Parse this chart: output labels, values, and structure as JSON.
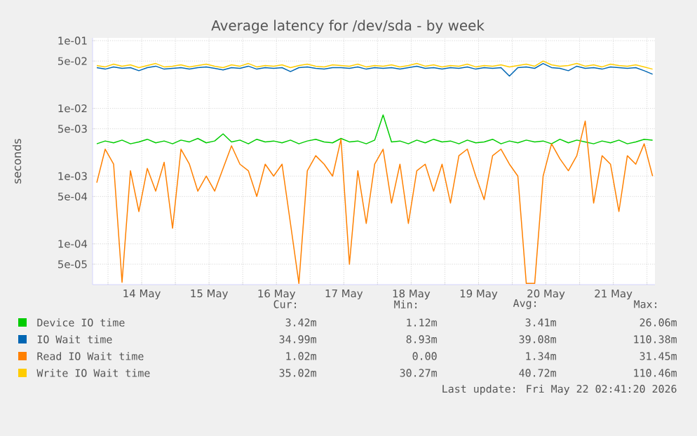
{
  "chart_data": {
    "type": "line",
    "title": "Average latency for /dev/sda - by week",
    "ylabel": "seconds",
    "x": [
      "2026-05-13T20:00",
      "2026-05-13T23:00",
      "2026-05-14T02:00",
      "2026-05-14T05:00",
      "2026-05-14T08:00",
      "2026-05-14T11:00",
      "2026-05-14T14:00",
      "2026-05-14T17:00",
      "2026-05-14T20:00",
      "2026-05-14T23:00",
      "2026-05-15T02:00",
      "2026-05-15T05:00",
      "2026-05-15T08:00",
      "2026-05-15T11:00",
      "2026-05-15T14:00",
      "2026-05-15T17:00",
      "2026-05-15T20:00",
      "2026-05-15T23:00",
      "2026-05-16T02:00",
      "2026-05-16T05:00",
      "2026-05-16T08:00",
      "2026-05-16T11:00",
      "2026-05-16T14:00",
      "2026-05-16T17:00",
      "2026-05-16T20:00",
      "2026-05-16T23:00",
      "2026-05-17T02:00",
      "2026-05-17T05:00",
      "2026-05-17T08:00",
      "2026-05-17T11:00",
      "2026-05-17T14:00",
      "2026-05-17T17:00",
      "2026-05-17T20:00",
      "2026-05-17T23:00",
      "2026-05-18T02:00",
      "2026-05-18T05:00",
      "2026-05-18T08:00",
      "2026-05-18T11:00",
      "2026-05-18T14:00",
      "2026-05-18T17:00",
      "2026-05-18T20:00",
      "2026-05-18T23:00",
      "2026-05-19T02:00",
      "2026-05-19T05:00",
      "2026-05-19T08:00",
      "2026-05-19T11:00",
      "2026-05-19T14:00",
      "2026-05-19T17:00",
      "2026-05-19T20:00",
      "2026-05-19T23:00",
      "2026-05-20T02:00",
      "2026-05-20T05:00",
      "2026-05-20T08:00",
      "2026-05-20T11:00",
      "2026-05-20T14:00",
      "2026-05-20T17:00",
      "2026-05-20T20:00",
      "2026-05-20T23:00",
      "2026-05-21T02:00",
      "2026-05-21T05:00",
      "2026-05-21T08:00",
      "2026-05-21T11:00",
      "2026-05-21T14:00",
      "2026-05-21T17:00",
      "2026-05-21T20:00",
      "2026-05-21T23:00",
      "2026-05-22T02:00"
    ],
    "series": [
      {
        "name": "Device IO time",
        "color": "#00cc00",
        "values": [
          0.003,
          0.0033,
          0.0031,
          0.0034,
          0.003,
          0.0032,
          0.0035,
          0.0031,
          0.0033,
          0.003,
          0.0034,
          0.0032,
          0.0036,
          0.0031,
          0.0033,
          0.0042,
          0.0032,
          0.0034,
          0.003,
          0.0035,
          0.0032,
          0.0033,
          0.0031,
          0.0034,
          0.003,
          0.0033,
          0.0035,
          0.0032,
          0.0031,
          0.0036,
          0.0032,
          0.0033,
          0.003,
          0.0034,
          0.008,
          0.0032,
          0.0033,
          0.003,
          0.0034,
          0.0031,
          0.0035,
          0.0032,
          0.0033,
          0.003,
          0.0034,
          0.0031,
          0.0032,
          0.0035,
          0.003,
          0.0033,
          0.0031,
          0.0034,
          0.0032,
          0.0033,
          0.003,
          0.0035,
          0.0031,
          0.0034,
          0.0032,
          0.003,
          0.0033,
          0.0031,
          0.0034,
          0.003,
          0.0032,
          0.0035,
          0.0034
        ]
      },
      {
        "name": "IO Wait time",
        "color": "#0066b3",
        "values": [
          0.04,
          0.038,
          0.041,
          0.039,
          0.04,
          0.036,
          0.04,
          0.042,
          0.038,
          0.039,
          0.04,
          0.038,
          0.04,
          0.041,
          0.039,
          0.037,
          0.04,
          0.039,
          0.042,
          0.038,
          0.04,
          0.039,
          0.04,
          0.035,
          0.04,
          0.041,
          0.039,
          0.038,
          0.04,
          0.04,
          0.039,
          0.041,
          0.038,
          0.04,
          0.039,
          0.04,
          0.038,
          0.04,
          0.042,
          0.039,
          0.04,
          0.038,
          0.04,
          0.039,
          0.041,
          0.038,
          0.04,
          0.039,
          0.04,
          0.03,
          0.04,
          0.041,
          0.039,
          0.046,
          0.04,
          0.039,
          0.036,
          0.042,
          0.039,
          0.04,
          0.038,
          0.041,
          0.04,
          0.039,
          0.04,
          0.036,
          0.032
        ]
      },
      {
        "name": "Read IO Wait time",
        "color": "#ff8000",
        "values": [
          0.0008,
          0.0025,
          0.0015,
          2.7e-05,
          0.0012,
          0.0003,
          0.0013,
          0.0006,
          0.0016,
          0.00017,
          0.0025,
          0.0015,
          0.0006,
          0.001,
          0.0006,
          0.0013,
          0.0028,
          0.0015,
          0.0012,
          0.0005,
          0.0015,
          0.001,
          0.0015,
          0.0002,
          2.6e-05,
          0.0012,
          0.002,
          0.0015,
          0.001,
          0.0035,
          5e-05,
          0.0012,
          0.0002,
          0.0015,
          0.0025,
          0.0004,
          0.0015,
          0.0002,
          0.0012,
          0.0015,
          0.0006,
          0.0015,
          0.0004,
          0.002,
          0.0025,
          0.001,
          0.00045,
          0.002,
          0.0025,
          0.0015,
          0.001,
          2.6e-05,
          2.6e-05,
          0.001,
          0.003,
          0.0018,
          0.0012,
          0.002,
          0.0065,
          0.0004,
          0.002,
          0.0015,
          0.0003,
          0.002,
          0.0015,
          0.003,
          0.001
        ]
      },
      {
        "name": "Write IO Wait time",
        "color": "#ffcc00",
        "values": [
          0.043,
          0.041,
          0.045,
          0.042,
          0.044,
          0.04,
          0.043,
          0.046,
          0.041,
          0.042,
          0.044,
          0.041,
          0.043,
          0.045,
          0.042,
          0.04,
          0.044,
          0.042,
          0.046,
          0.041,
          0.043,
          0.042,
          0.044,
          0.04,
          0.043,
          0.045,
          0.042,
          0.041,
          0.044,
          0.043,
          0.042,
          0.045,
          0.041,
          0.043,
          0.042,
          0.044,
          0.041,
          0.043,
          0.046,
          0.042,
          0.044,
          0.041,
          0.043,
          0.042,
          0.045,
          0.041,
          0.043,
          0.042,
          0.044,
          0.041,
          0.043,
          0.045,
          0.042,
          0.05,
          0.044,
          0.042,
          0.043,
          0.046,
          0.042,
          0.044,
          0.041,
          0.045,
          0.043,
          0.042,
          0.044,
          0.041,
          0.038
        ]
      }
    ],
    "xlim": [
      "2026-05-13T18:30",
      "2026-05-22T02:50"
    ],
    "xticks": [
      {
        "value": "2026-05-14T00:00",
        "label": null
      },
      {
        "value": "2026-05-14T12:00",
        "label": "14 May"
      },
      {
        "value": "2026-05-15T00:00",
        "label": null
      },
      {
        "value": "2026-05-15T12:00",
        "label": "15 May"
      },
      {
        "value": "2026-05-16T00:00",
        "label": null
      },
      {
        "value": "2026-05-16T12:00",
        "label": "16 May"
      },
      {
        "value": "2026-05-17T00:00",
        "label": null
      },
      {
        "value": "2026-05-17T12:00",
        "label": "17 May"
      },
      {
        "value": "2026-05-18T00:00",
        "label": null
      },
      {
        "value": "2026-05-18T12:00",
        "label": "18 May"
      },
      {
        "value": "2026-05-19T00:00",
        "label": null
      },
      {
        "value": "2026-05-19T12:00",
        "label": "19 May"
      },
      {
        "value": "2026-05-20T00:00",
        "label": null
      },
      {
        "value": "2026-05-20T12:00",
        "label": "20 May"
      },
      {
        "value": "2026-05-21T00:00",
        "label": null
      },
      {
        "value": "2026-05-21T12:00",
        "label": "21 May"
      },
      {
        "value": "2026-05-22T00:00",
        "label": null
      }
    ],
    "ylim": [
      2.5e-05,
      0.11
    ],
    "yticks": [
      {
        "value": 0.1,
        "label": "1e-01"
      },
      {
        "value": 0.05,
        "label": "5e-02"
      },
      {
        "value": 0.01,
        "label": "1e-02"
      },
      {
        "value": 0.005,
        "label": "5e-03"
      },
      {
        "value": 0.001,
        "label": "1e-03"
      },
      {
        "value": 0.0005,
        "label": "5e-04"
      },
      {
        "value": 0.0001,
        "label": "1e-04"
      },
      {
        "value": 5e-05,
        "label": "5e-05"
      }
    ],
    "log": "y",
    "grid": true,
    "legend": "bottom",
    "annotations": [
      "Cur:",
      "Min:",
      "Avg:",
      "Max:",
      "3.42m",
      "1.12m",
      "3.41m",
      "26.06m",
      "34.99m",
      "8.93m",
      "39.08m",
      "110.38m",
      "1.02m",
      "0.00",
      "1.34m",
      "31.45m",
      "35.02m",
      "30.27m",
      "40.72m",
      "110.46m",
      "Last update: Fri May 22 02:41:20 2026"
    ]
  }
}
